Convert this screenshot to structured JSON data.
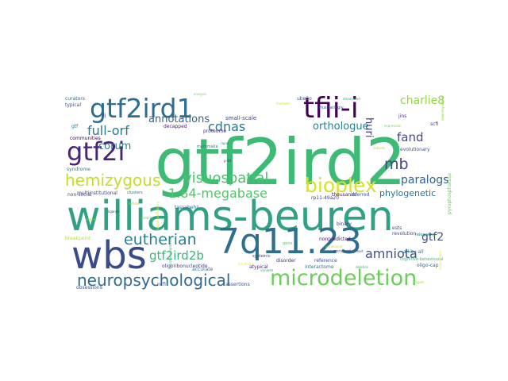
{
  "words": [
    {
      "text": "gtf2ird2",
      "color": "#3dbb74"
    },
    {
      "text": "williams-beuren",
      "color": "#31a186"
    },
    {
      "text": "7q11.23",
      "color": "#2c6f8e"
    },
    {
      "text": "wbs",
      "color": "#3a4b89"
    },
    {
      "text": "microdeletion",
      "color": "#6ccd5a"
    },
    {
      "text": "gtf2ird1",
      "color": "#2d6e8e"
    },
    {
      "text": "tfii-i",
      "color": "#440154"
    },
    {
      "text": "gtf2i",
      "color": "#482576"
    },
    {
      "text": "bioplex",
      "color": "#d3e22d"
    },
    {
      "text": "neuropsychological",
      "color": "#306a8e"
    },
    {
      "text": "hemizygous",
      "color": "#c0df25"
    },
    {
      "text": "visuospatial",
      "color": "#4ac16d"
    },
    {
      "text": "eutherian",
      "color": "#277f8e"
    },
    {
      "text": "cdnas",
      "color": "#2a788e"
    },
    {
      "text": "full-orf",
      "color": "#2a788e"
    },
    {
      "text": "1.84-megabase",
      "color": "#52c569"
    },
    {
      "text": "gtf2ird2b",
      "color": "#36b77a"
    },
    {
      "text": "amniota",
      "color": "#3b528b"
    },
    {
      "text": "mb",
      "color": "#404688"
    },
    {
      "text": "annotations",
      "color": "#33638d"
    },
    {
      "text": "orthologue",
      "color": "#25838e"
    },
    {
      "text": "corum",
      "color": "#26828e"
    },
    {
      "text": "charlie8",
      "color": "#93d741"
    },
    {
      "text": "fand",
      "color": "#3e4a89"
    },
    {
      "text": "paralogs",
      "color": "#355f8d"
    },
    {
      "text": "gtf2",
      "color": "#3b528b"
    },
    {
      "text": "huri",
      "color": "#433e85"
    },
    {
      "text": "phylogenetic",
      "color": "#2c718e"
    },
    {
      "text": "tassabehji",
      "color": "#2e6e8e"
    },
    {
      "text": "small-scale",
      "color": "#414487"
    },
    {
      "text": "decapped",
      "color": "#482173"
    },
    {
      "text": "proteome",
      "color": "#46327e"
    },
    {
      "text": "mammalia",
      "color": "#2a778e"
    },
    {
      "text": "curators",
      "color": "#31688e"
    },
    {
      "text": "typical",
      "color": "#3e4a89"
    },
    {
      "text": "communities",
      "color": "#440154"
    },
    {
      "text": "non-social",
      "color": "#3e4989"
    },
    {
      "text": "syndrome",
      "color": "#27808e"
    },
    {
      "text": "multiinstitutional",
      "color": "#404588"
    },
    {
      "text": "oligoribonucleotide",
      "color": "#424086"
    },
    {
      "text": "accurate",
      "color": "#2b748e"
    },
    {
      "text": "assertions",
      "color": "#3b528b"
    },
    {
      "text": "obsessions",
      "color": "#38598c"
    },
    {
      "text": "ncfi",
      "color": "#3d4d8a"
    },
    {
      "text": "evolutionary",
      "color": "#3b528b"
    },
    {
      "text": "relegating",
      "color": "#25848e"
    },
    {
      "text": "cognitive-behavioural",
      "color": "#3aba76"
    },
    {
      "text": "oligo-cap",
      "color": "#32648e"
    },
    {
      "text": "all-by-all",
      "color": "#2d708e"
    },
    {
      "text": "revolution",
      "color": "#3f4788"
    },
    {
      "text": "thousands",
      "color": "#471063"
    },
    {
      "text": "inferred",
      "color": "#39568c"
    },
    {
      "text": "rp11-49a20",
      "color": "#433e85"
    },
    {
      "text": "nonpredicted",
      "color": "#481668"
    },
    {
      "text": "disorder",
      "color": "#46327e"
    },
    {
      "text": "reference",
      "color": "#3e4a89"
    },
    {
      "text": "interactome",
      "color": "#2b758e"
    },
    {
      "text": "binary",
      "color": "#453581"
    },
    {
      "text": "enriched",
      "color": "#424186"
    },
    {
      "text": "pyrophosphatase",
      "color": "#6ece58"
    },
    {
      "text": "atypical",
      "color": "#481b6d"
    },
    {
      "text": "breakpoint",
      "color": "#b8de29"
    },
    {
      "text": "scfi",
      "color": "#404688"
    },
    {
      "text": "jins",
      "color": "#472d7b"
    },
    {
      "text": "ube2o",
      "color": "#3b528b"
    },
    {
      "text": "synteinic",
      "color": "#404688"
    },
    {
      "text": "ests",
      "color": "#3b528b"
    },
    {
      "text": "clusters",
      "color": "#2a778e"
    },
    {
      "text": "ligands",
      "color": "#3e4a89"
    },
    {
      "text": "fij",
      "color": "#3e4a89"
    },
    {
      "text": "gtf",
      "color": "#26828e"
    },
    {
      "text": "long-read",
      "color": "#3b528b"
    },
    {
      "text": "frustratingly",
      "color": "#3b528b"
    },
    {
      "text": "neurodevelopmental",
      "color": "#35b779"
    },
    {
      "text": "p-30",
      "color": "#46327e"
    },
    {
      "text": "rapid",
      "color": "#25838e"
    },
    {
      "text": "functions",
      "color": "#fde725"
    },
    {
      "text": "dispensable",
      "color": "#fde725"
    },
    {
      "text": "downregulated",
      "color": "#8fd744"
    },
    {
      "text": "haploinsufficiency",
      "color": "#e5e419"
    },
    {
      "text": "subsets",
      "color": "#b5de2b"
    },
    {
      "text": "fourteen",
      "color": "#d8e219"
    },
    {
      "text": "ultrasound",
      "color": "#c8e020"
    },
    {
      "text": "exhibit",
      "color": "#a2da37"
    },
    {
      "text": "expression",
      "color": "#7fd34e"
    },
    {
      "text": "deletion",
      "color": "#2db27d"
    },
    {
      "text": "variants",
      "color": "#1fa188"
    },
    {
      "text": "discovered",
      "color": "#22a785"
    },
    {
      "text": "gene",
      "color": "#5ec962"
    },
    {
      "text": "protein",
      "color": "#6ece58"
    },
    {
      "text": "coding",
      "color": "#addc30"
    },
    {
      "text": "region",
      "color": "#9bd93c"
    },
    {
      "text": "analysis",
      "color": "#84d44b"
    }
  ]
}
